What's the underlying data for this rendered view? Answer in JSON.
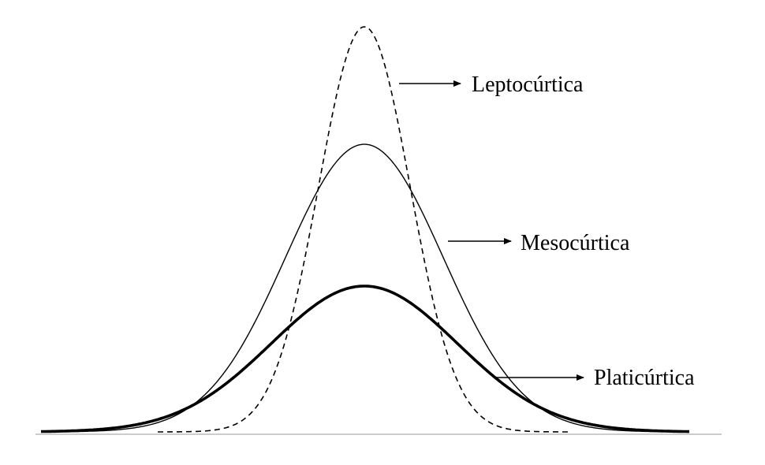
{
  "diagram": {
    "labels": {
      "leptokurtic": "Leptocúrtica",
      "mesokurtic": "Mesocúrtica",
      "platykurtic": "Platicúrtica"
    },
    "colors": {
      "ink": "#000000",
      "baseline": "#bbbbbb",
      "background": "#ffffff"
    },
    "curves": [
      {
        "id": "leptokurtic",
        "line_style": "dashed",
        "relative_peak": 1.0
      },
      {
        "id": "mesokurtic",
        "line_style": "thin-solid",
        "relative_peak": 0.71
      },
      {
        "id": "platykurtic",
        "line_style": "bold-solid",
        "relative_peak": 0.36
      }
    ]
  }
}
